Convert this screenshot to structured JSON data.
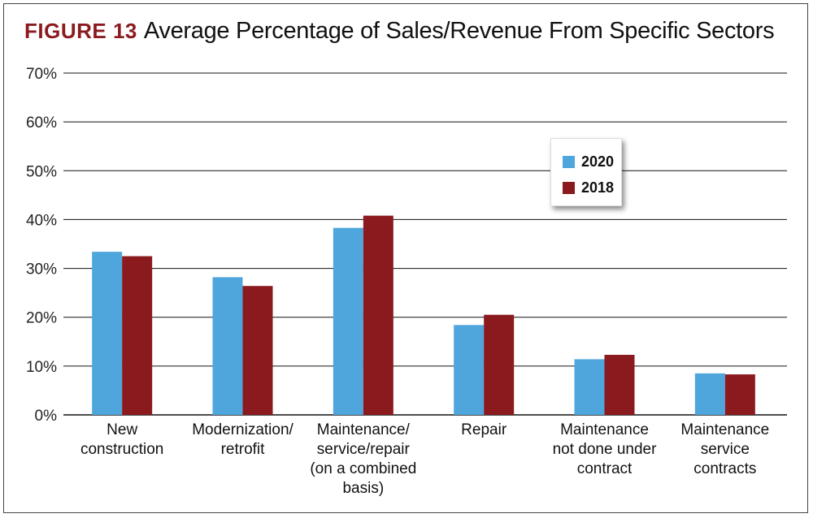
{
  "header": {
    "figure_label": "FIGURE 13",
    "title": "Average Percentage of Sales/Revenue From Specific Sectors"
  },
  "colors": {
    "series_2020": "#4ea6dc",
    "series_2018": "#8b1a1f",
    "grid": "#111111"
  },
  "chart_data": {
    "type": "bar",
    "title": "Average Percentage of Sales/Revenue From Specific Sectors",
    "categories": [
      [
        "New",
        "construction"
      ],
      [
        "Modernization/",
        "retrofit"
      ],
      [
        "Maintenance/",
        "service/repair",
        "(on a combined",
        "basis)"
      ],
      [
        "Repair"
      ],
      [
        "Maintenance",
        "not done under",
        "contract"
      ],
      [
        "Maintenance",
        "service",
        "contracts"
      ]
    ],
    "series": [
      {
        "name": "2020",
        "values": [
          33.4,
          28.2,
          38.3,
          18.4,
          11.4,
          8.5
        ]
      },
      {
        "name": "2018",
        "values": [
          32.5,
          26.4,
          40.8,
          20.5,
          12.3,
          8.3
        ]
      }
    ],
    "ylim": [
      0,
      70
    ],
    "yticks": [
      0,
      10,
      20,
      30,
      40,
      50,
      60,
      70
    ],
    "ytick_labels": [
      "0%",
      "10%",
      "20%",
      "30%",
      "40%",
      "50%",
      "60%",
      "70%"
    ],
    "grid": true,
    "legend_position": "top-right"
  }
}
